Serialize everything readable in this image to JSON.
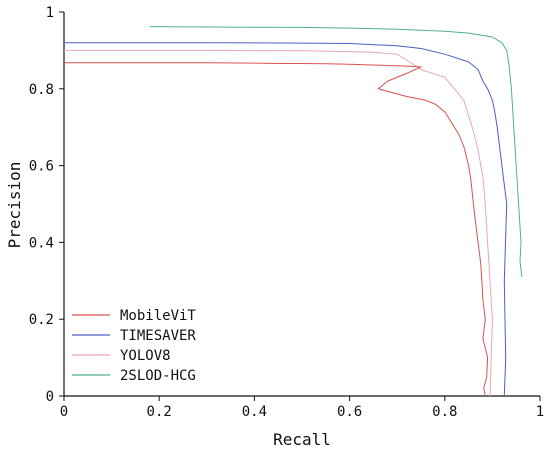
{
  "chart_data": {
    "type": "line",
    "title": "",
    "xlabel": "Recall",
    "ylabel": "Precision",
    "xlim": [
      0,
      1
    ],
    "ylim": [
      0,
      1
    ],
    "xticks": [
      0,
      0.2,
      0.4,
      0.6,
      0.8,
      1
    ],
    "yticks": [
      0,
      0.2,
      0.4,
      0.6,
      0.8,
      1
    ],
    "xtick_labels": [
      "0",
      "0.2",
      "0.4",
      "0.6",
      "0.8",
      "1"
    ],
    "ytick_labels": [
      "0",
      "0.2",
      "0.4",
      "0.6",
      "0.8",
      "1"
    ],
    "grid": false,
    "legend_position": "lower-left",
    "series": [
      {
        "name": "MobileViT",
        "color": "#d9534f",
        "x": [
          0.0,
          0.3,
          0.4,
          0.45,
          0.5,
          0.55,
          0.6,
          0.65,
          0.7,
          0.75,
          0.72,
          0.68,
          0.66,
          0.72,
          0.76,
          0.78,
          0.8,
          0.81,
          0.82,
          0.83,
          0.84,
          0.85,
          0.855,
          0.86,
          0.865,
          0.87,
          0.875,
          0.878,
          0.88,
          0.885,
          0.88,
          0.89,
          0.888,
          0.882,
          0.885
        ],
        "y": [
          0.868,
          0.868,
          0.867,
          0.866,
          0.866,
          0.865,
          0.864,
          0.862,
          0.86,
          0.857,
          0.84,
          0.82,
          0.8,
          0.78,
          0.77,
          0.76,
          0.74,
          0.72,
          0.7,
          0.68,
          0.65,
          0.6,
          0.56,
          0.5,
          0.45,
          0.4,
          0.35,
          0.3,
          0.25,
          0.2,
          0.15,
          0.1,
          0.05,
          0.02,
          0.0
        ]
      },
      {
        "name": "TIMESAVER",
        "color": "#4a5fc7",
        "x": [
          0.0,
          0.3,
          0.5,
          0.6,
          0.7,
          0.75,
          0.8,
          0.85,
          0.87,
          0.88,
          0.89,
          0.9,
          0.905,
          0.91,
          0.915,
          0.92,
          0.925,
          0.93,
          0.925,
          0.928,
          0.925
        ],
        "y": [
          0.92,
          0.92,
          0.919,
          0.918,
          0.912,
          0.905,
          0.89,
          0.87,
          0.85,
          0.82,
          0.8,
          0.77,
          0.74,
          0.7,
          0.65,
          0.6,
          0.55,
          0.5,
          0.3,
          0.1,
          0.0
        ]
      },
      {
        "name": "YOLOV8",
        "color": "#e8a6b8",
        "x": [
          0.0,
          0.3,
          0.5,
          0.6,
          0.65,
          0.7,
          0.72,
          0.75,
          0.8,
          0.82,
          0.84,
          0.85,
          0.86,
          0.87,
          0.88,
          0.885,
          0.89,
          0.895,
          0.9,
          0.895
        ],
        "y": [
          0.9,
          0.9,
          0.899,
          0.897,
          0.895,
          0.89,
          0.875,
          0.85,
          0.83,
          0.8,
          0.77,
          0.73,
          0.69,
          0.64,
          0.57,
          0.5,
          0.4,
          0.3,
          0.2,
          0.0
        ]
      },
      {
        "name": "2SLOD-HCG",
        "color": "#4fae98",
        "x": [
          0.18,
          0.3,
          0.5,
          0.6,
          0.7,
          0.8,
          0.85,
          0.9,
          0.92,
          0.93,
          0.935,
          0.94,
          0.945,
          0.95,
          0.955,
          0.96,
          0.958,
          0.962
        ],
        "y": [
          0.962,
          0.961,
          0.96,
          0.958,
          0.955,
          0.95,
          0.945,
          0.935,
          0.92,
          0.9,
          0.86,
          0.8,
          0.7,
          0.6,
          0.5,
          0.4,
          0.35,
          0.31
        ]
      }
    ]
  }
}
